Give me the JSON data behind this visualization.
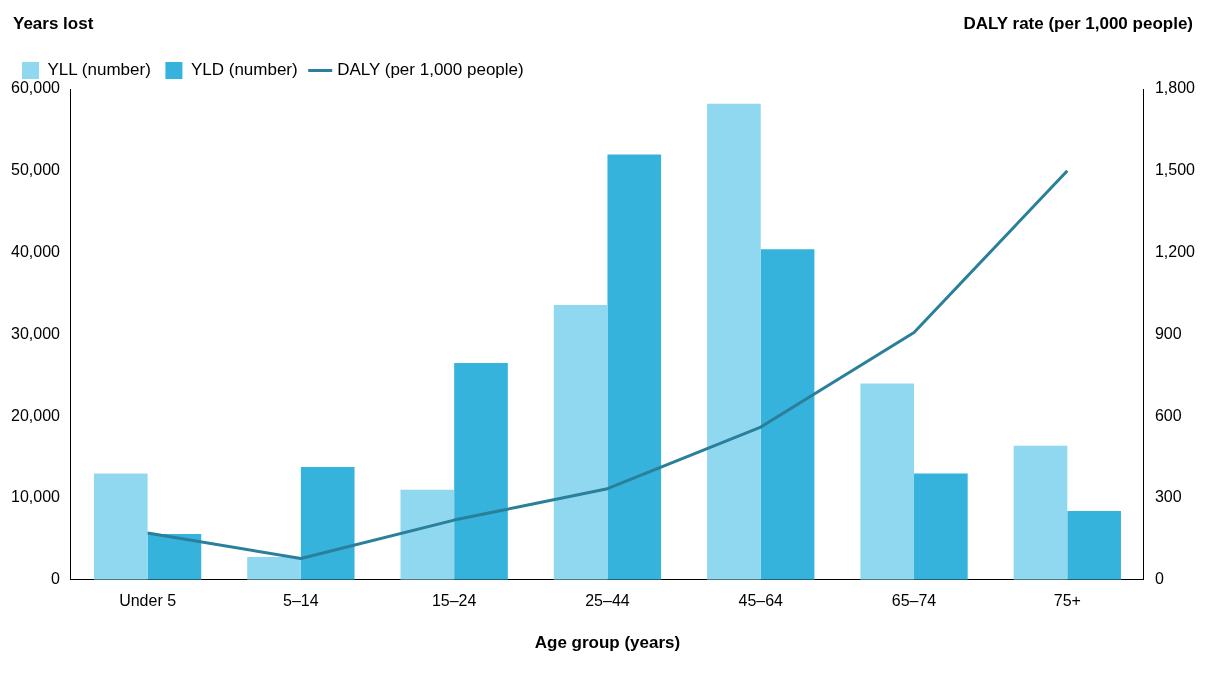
{
  "chart_data": {
    "type": "bar",
    "xlabel": "Age group (years)",
    "ylabel": "Years lost",
    "y2label": "DALY rate (per 1,000 people)",
    "categories": [
      "Under 5",
      "5–14",
      "15–24",
      "25–44",
      "45–64",
      "65–74",
      "75+"
    ],
    "series": [
      {
        "name": "YLL (number)",
        "color": "#8fd8f0",
        "values": [
          13000,
          2800,
          11000,
          33600,
          58200,
          24000,
          16400
        ]
      },
      {
        "name": "YLD (number)",
        "color": "#35b3dc",
        "values": [
          5600,
          13800,
          26500,
          52000,
          40400,
          13000,
          8400
        ]
      },
      {
        "name": "DALY (per 1,000 people)",
        "type": "line",
        "axis": "y2",
        "color": "#2a7f9a",
        "values": [
          172,
          78,
          219,
          334,
          560,
          907,
          1500
        ]
      }
    ],
    "ylim": [
      0,
      60000
    ],
    "yticks": [
      0,
      {
        "value": 10000,
        "label": "10,000"
      },
      {
        "value": 20000,
        "label": "20,000"
      },
      {
        "value": 30000,
        "label": "30,000"
      },
      {
        "value": 40000,
        "label": "40,000"
      },
      {
        "value": 50000,
        "label": "50,000"
      },
      {
        "value": 60000,
        "label": "60,000"
      }
    ],
    "y2lim": [
      0,
      1800
    ],
    "y2ticks": [
      0,
      300,
      600,
      900,
      {
        "value": 1200,
        "label": "1,200"
      },
      {
        "value": 1500,
        "label": "1,500"
      },
      {
        "value": 1800,
        "label": "1,800"
      }
    ],
    "grid": false,
    "legend": "top left",
    "marker": "none",
    "line_style": "solid"
  }
}
